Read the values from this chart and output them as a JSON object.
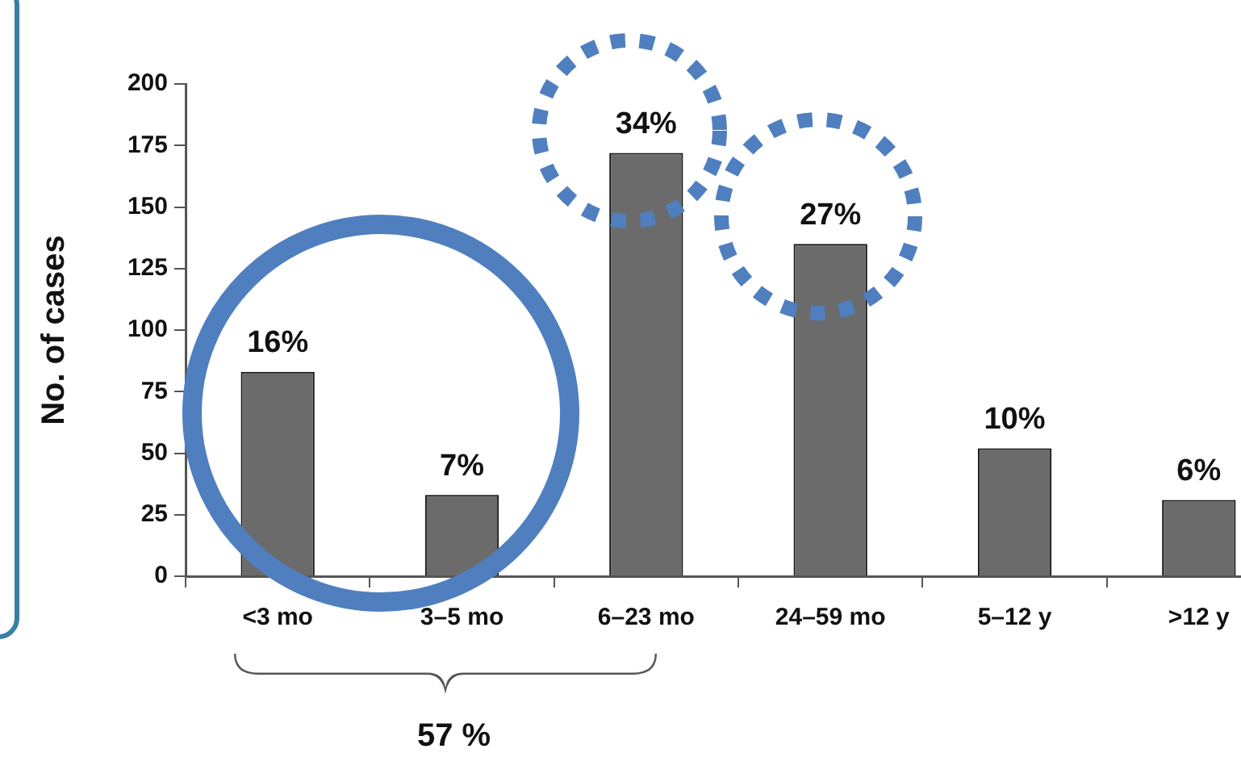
{
  "chart_data": {
    "type": "bar",
    "ylabel": "No. of cases",
    "categories": [
      "<3 mo",
      "3–5 mo",
      "6–23 mo",
      "24–59 mo",
      "5–12 y",
      ">12 y"
    ],
    "values": [
      83,
      33,
      172,
      135,
      52,
      31
    ],
    "color": "#6b6b6b",
    "ylim": [
      0,
      200
    ],
    "yticks": [
      0,
      25,
      50,
      75,
      100,
      125,
      150,
      175,
      200
    ],
    "annotations": [
      {
        "text": "16%",
        "x": "<3 mo",
        "y": 83
      },
      {
        "text": "7%",
        "x": "3–5 mo",
        "y": 33
      },
      {
        "text": "34%",
        "x": "6–23 mo",
        "y": 172
      },
      {
        "text": "27%",
        "x": "24–59 mo",
        "y": 135
      },
      {
        "text": "10%",
        "x": "5–12 y",
        "y": 52
      },
      {
        "text": "6%",
        "x": ">12 y",
        "y": 31
      },
      "57 %"
    ]
  }
}
